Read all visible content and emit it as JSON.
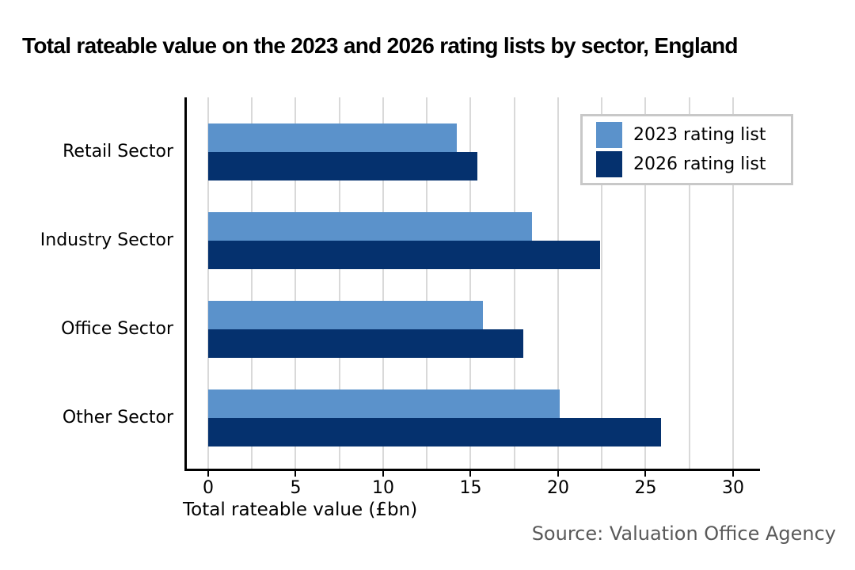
{
  "title": "Total rateable value on the 2023 and 2026 rating lists by sector, England",
  "source_note": "Source: Valuation Office Agency",
  "chart_data": {
    "type": "bar",
    "orientation": "horizontal",
    "title": "Total rateable value on the 2023 and 2026 rating lists by sector, England",
    "xlabel": "Total rateable value (£bn)",
    "ylabel": "",
    "categories": [
      "Retail Sector",
      "Industry Sector",
      "Office Sector",
      "Other Sector"
    ],
    "series": [
      {
        "name": "2023 rating list",
        "color": "#5B92CB",
        "values": [
          14.2,
          18.5,
          15.7,
          20.1
        ]
      },
      {
        "name": "2026 rating list",
        "color": "#05316E",
        "values": [
          15.4,
          22.4,
          18.0,
          25.9
        ]
      }
    ],
    "xticks": [
      0,
      5,
      10,
      15,
      20,
      25,
      30
    ],
    "xlim": [
      -1.22,
      31.54
    ],
    "gridline_step": 2.5,
    "grid": true,
    "legend_position": "top-right",
    "annotations": [
      "Source: Valuation Office Agency"
    ]
  }
}
